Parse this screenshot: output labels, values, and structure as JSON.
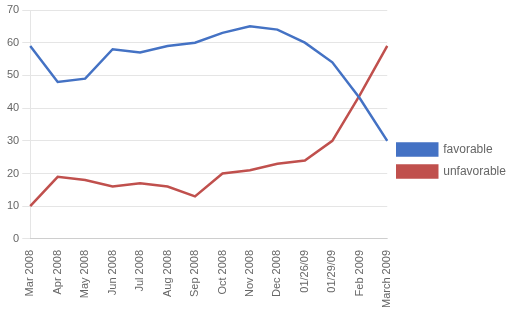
{
  "chart_data": {
    "type": "line",
    "categories": [
      "Mar 2008",
      "Apr 2008",
      "May 2008",
      "Jun 2008",
      "Jul 2008",
      "Aug 2008",
      "Sep 2008",
      "Oct 2008",
      "Nov 2008",
      "Dec 2008",
      "01/26/09",
      "01/29/09",
      "Feb 2009",
      "March 2009"
    ],
    "series": [
      {
        "name": "favorable",
        "color": "#4472C4",
        "values": [
          59,
          48,
          49,
          58,
          57,
          59,
          60,
          63,
          65,
          64,
          60,
          54,
          43,
          30
        ]
      },
      {
        "name": "unfavorable",
        "color": "#C0504D",
        "values": [
          10,
          19,
          18,
          16,
          17,
          16,
          13,
          20,
          21,
          23,
          24,
          30,
          44,
          59
        ]
      }
    ],
    "ylim": [
      0,
      70
    ],
    "yticks": [
      0,
      10,
      20,
      30,
      40,
      50,
      60,
      70
    ],
    "grid": true,
    "legend": "right"
  }
}
